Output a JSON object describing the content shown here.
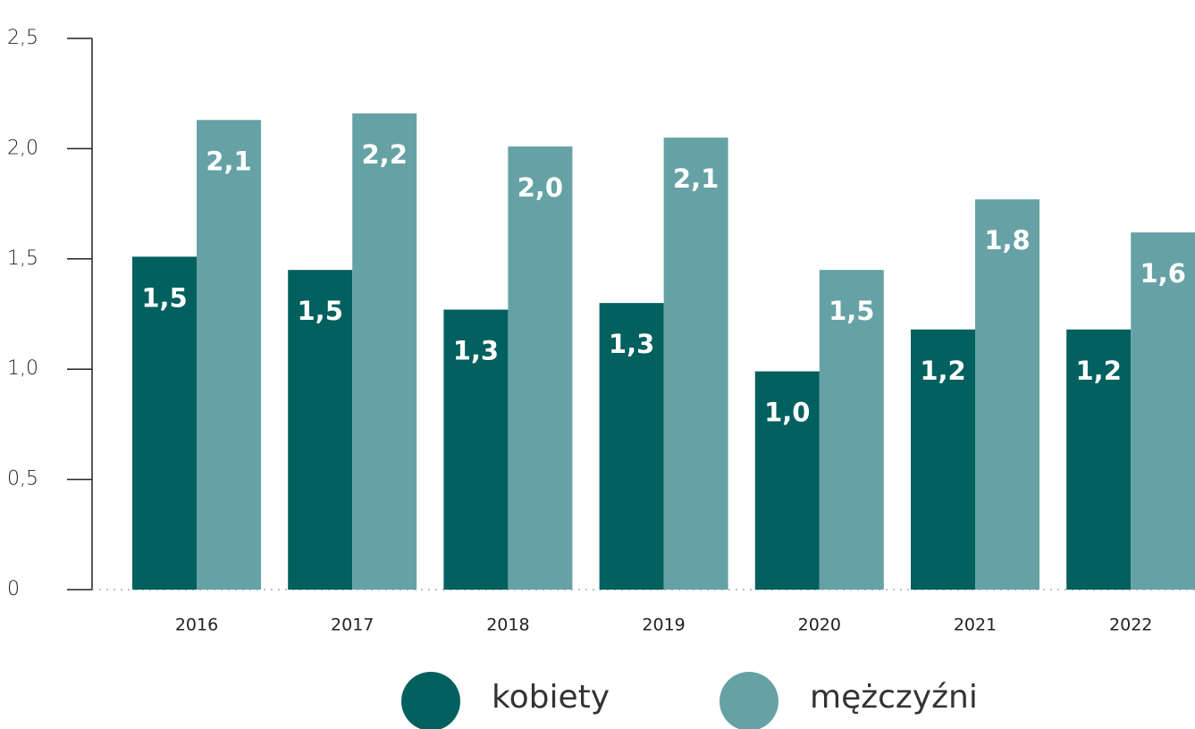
{
  "chart_data": {
    "type": "bar",
    "categories": [
      "2016",
      "2017",
      "2018",
      "2019",
      "2020",
      "2021",
      "2022"
    ],
    "series": [
      {
        "name": "kobiety",
        "color": "#02605f",
        "values": [
          1.51,
          1.45,
          1.27,
          1.3,
          0.99,
          1.18,
          1.18
        ],
        "value_labels": [
          "1,5",
          "1,5",
          "1,3",
          "1,3",
          "1,0",
          "1,2",
          "1,2"
        ]
      },
      {
        "name": "mężczyźni",
        "color": "#66a2a5",
        "values": [
          2.13,
          2.16,
          2.01,
          2.05,
          1.45,
          1.77,
          1.62
        ],
        "value_labels": [
          "2,1",
          "2,2",
          "2,0",
          "2,1",
          "1,5",
          "1,8",
          "1,6"
        ]
      }
    ],
    "ylim": [
      0,
      2.5
    ],
    "yticks": [
      0,
      {
        "value": 0.5,
        "label": "0,5"
      },
      {
        "value": 1,
        "label": "1,0"
      },
      {
        "value": 1.5,
        "label": "1,5"
      },
      {
        "value": 2,
        "label": "2,0"
      },
      {
        "value": 2.5,
        "label": "2,5"
      }
    ]
  }
}
